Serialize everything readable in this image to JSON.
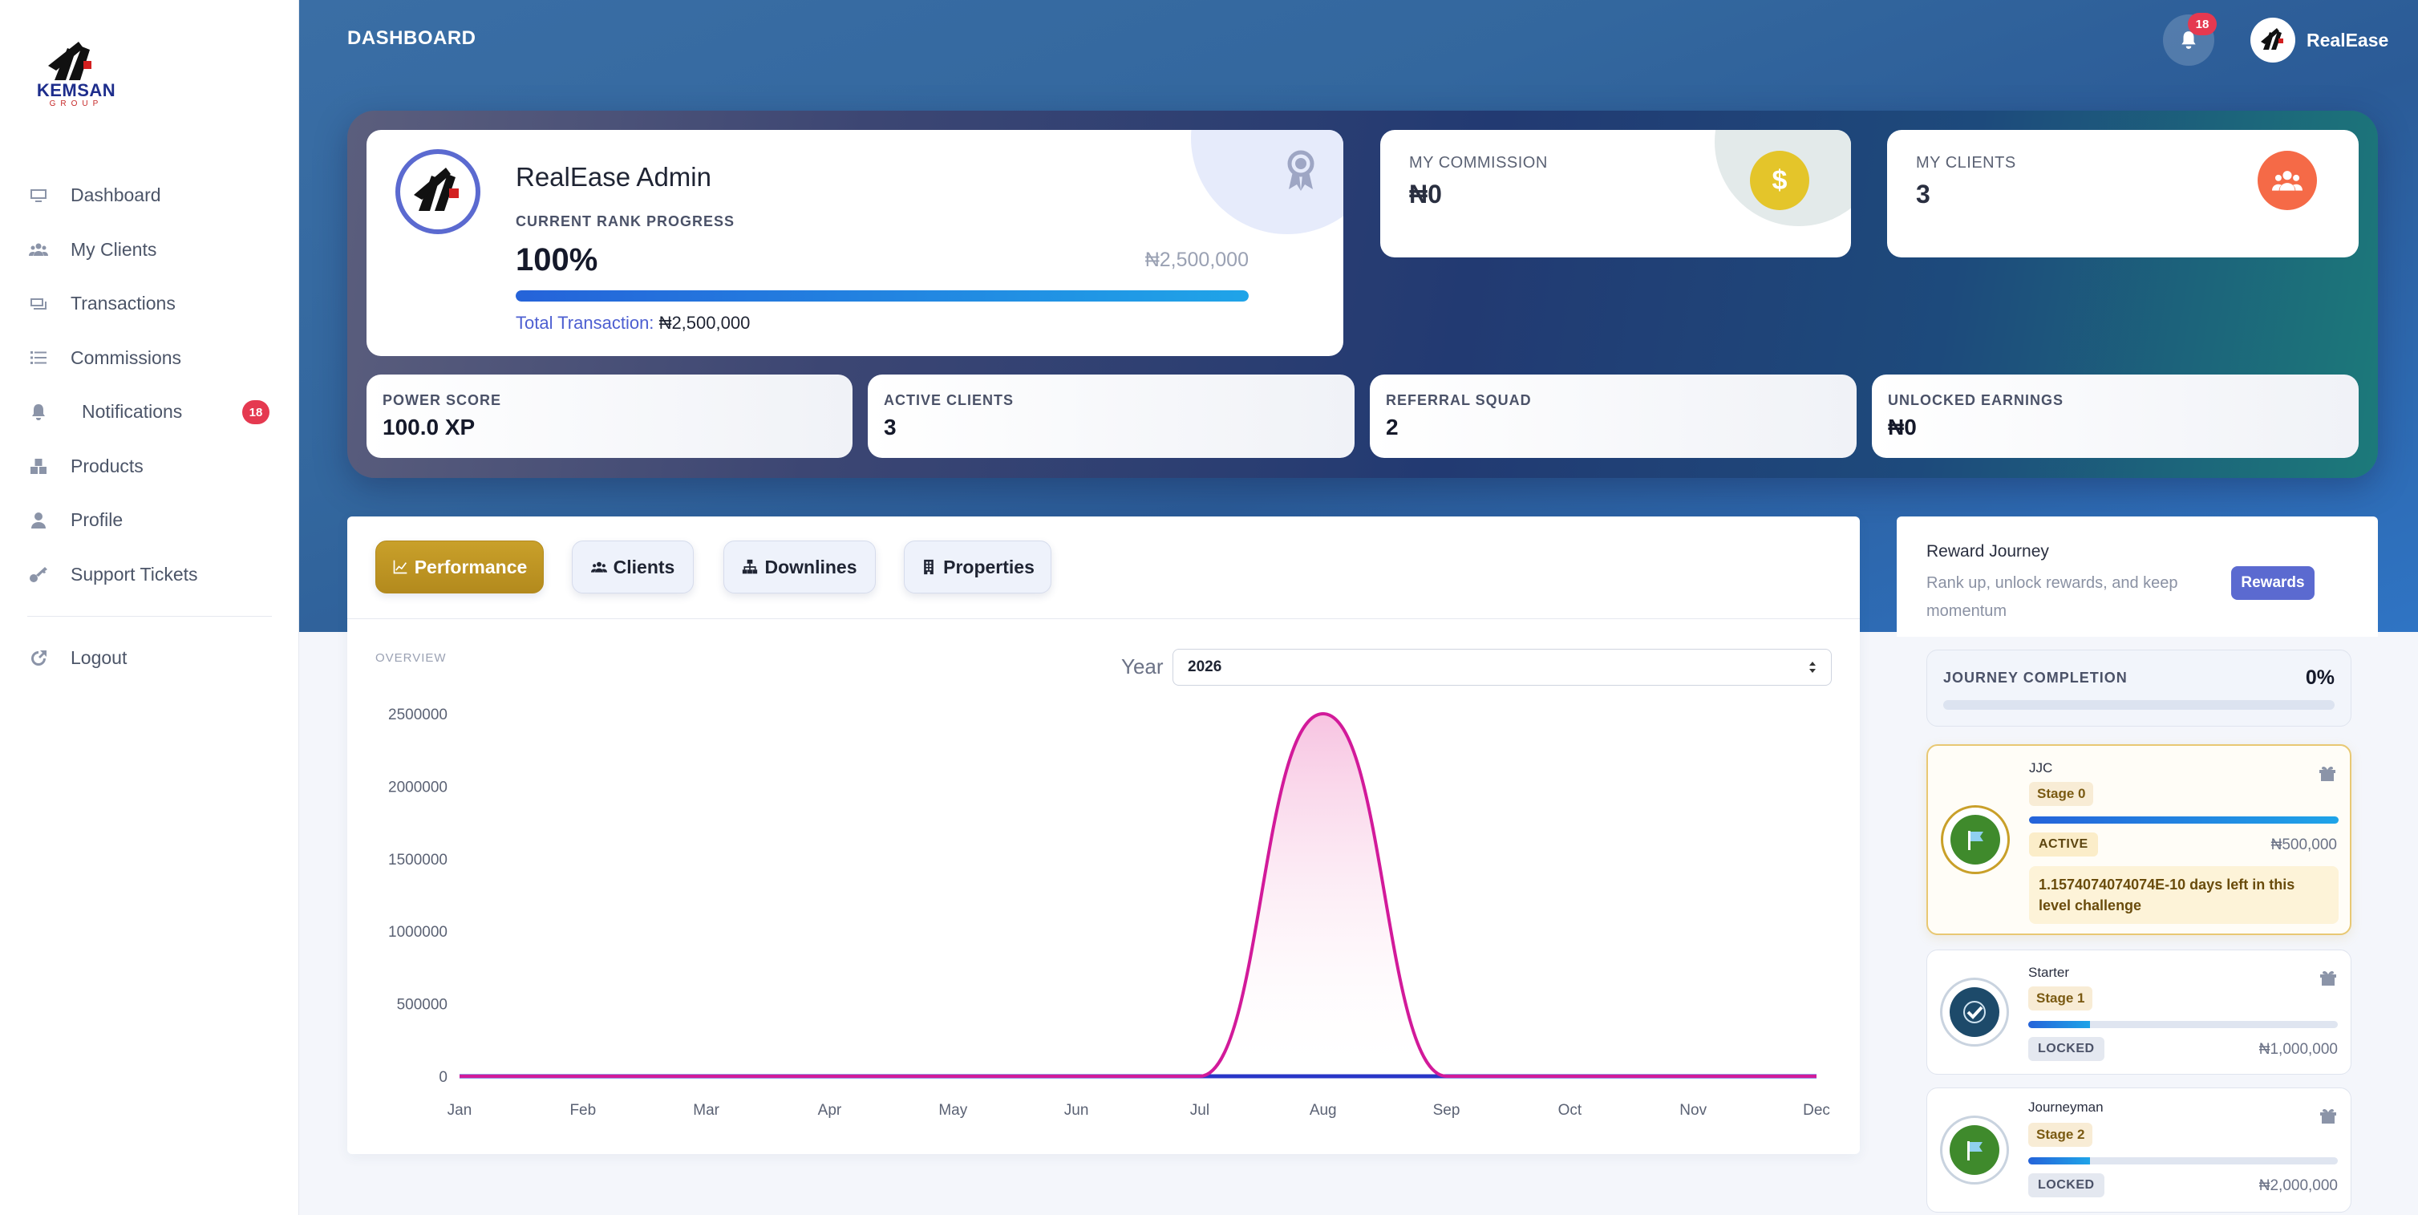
{
  "brand": {
    "name": "KEMSAN",
    "sub": "GROUP"
  },
  "sidebar": {
    "items": [
      {
        "label": "Dashboard",
        "icon": "monitor-icon"
      },
      {
        "label": "My Clients",
        "icon": "users-icon"
      },
      {
        "label": "Transactions",
        "icon": "transactions-icon"
      },
      {
        "label": "Commissions",
        "icon": "list-icon"
      },
      {
        "label": "Notifications",
        "icon": "bell-icon",
        "badge": "18"
      },
      {
        "label": "Products",
        "icon": "boxes-icon"
      },
      {
        "label": "Profile",
        "icon": "user-icon"
      },
      {
        "label": "Support Tickets",
        "icon": "key-icon"
      }
    ],
    "logout": "Logout"
  },
  "header": {
    "title": "DASHBOARD",
    "notification_count": "18",
    "user_name": "RealEase"
  },
  "admin_card": {
    "name": "RealEase Admin",
    "rank_label": "CURRENT RANK PROGRESS",
    "rank_percent": "100%",
    "rank_progress": 1.0,
    "rank_target": "₦2,500,000",
    "total_label": "Total Transaction:",
    "total_value": "₦2,500,000"
  },
  "stats": {
    "commission": {
      "title": "MY COMMISSION",
      "value": "₦0",
      "icon": "dollar-icon",
      "color": "#e4c52a"
    },
    "clients": {
      "title": "MY CLIENTS",
      "value": "3",
      "icon": "users-icon",
      "color": "#f56a47"
    }
  },
  "mini_stats": [
    {
      "title": "POWER SCORE",
      "value": "100.0 XP"
    },
    {
      "title": "ACTIVE CLIENTS",
      "value": "3"
    },
    {
      "title": "REFERRAL SQUAD",
      "value": "2"
    },
    {
      "title": "UNLOCKED EARNINGS",
      "value": "₦0"
    }
  ],
  "tabs": [
    {
      "label": "Performance",
      "icon": "chart-line-icon",
      "active": true
    },
    {
      "label": "Clients",
      "icon": "users-icon",
      "active": false
    },
    {
      "label": "Downlines",
      "icon": "sitemap-icon",
      "active": false
    },
    {
      "label": "Properties",
      "icon": "building-icon",
      "active": false
    }
  ],
  "chart_panel": {
    "overview_label": "OVERVIEW",
    "year_label": "Year",
    "year_value": "2026"
  },
  "chart_data": {
    "type": "line",
    "categories": [
      "Jan",
      "Feb",
      "Mar",
      "Apr",
      "May",
      "Jun",
      "Jul",
      "Aug",
      "Sep",
      "Oct",
      "Nov",
      "Dec"
    ],
    "series": [
      {
        "values": [
          0,
          0,
          0,
          0,
          0,
          0,
          0,
          2500000,
          0,
          0,
          0,
          0
        ],
        "color": "#d21a9a"
      },
      {
        "values": [
          0,
          0,
          0,
          0,
          0,
          0,
          0,
          0,
          0,
          0,
          0,
          0
        ],
        "color": "#2836c7"
      }
    ],
    "yticks": [
      "2500000",
      "2000000",
      "1500000",
      "1000000",
      "500000",
      "0"
    ],
    "ylim": [
      0,
      2500000
    ],
    "grid": false
  },
  "rewards": {
    "title": "Reward Journey",
    "subtitle": "Rank up, unlock rewards, and keep momentum",
    "button": "Rewards",
    "completion_label": "JOURNEY COMPLETION",
    "completion_value": "0%",
    "completion_progress": 0,
    "stages": [
      {
        "name": "JJC",
        "stage": "Stage 0",
        "status": "ACTIVE",
        "amount": "₦500,000",
        "progress": 1.0,
        "icon": "flag-icon",
        "note": "1.1574074074074E-10 days left in this level challenge"
      },
      {
        "name": "Starter",
        "stage": "Stage 1",
        "status": "LOCKED",
        "amount": "₦1,000,000",
        "progress": 0.2,
        "icon": "check-icon"
      },
      {
        "name": "Journeyman",
        "stage": "Stage 2",
        "status": "LOCKED",
        "amount": "₦2,000,000",
        "progress": 0.2,
        "icon": "flag-icon"
      }
    ]
  }
}
